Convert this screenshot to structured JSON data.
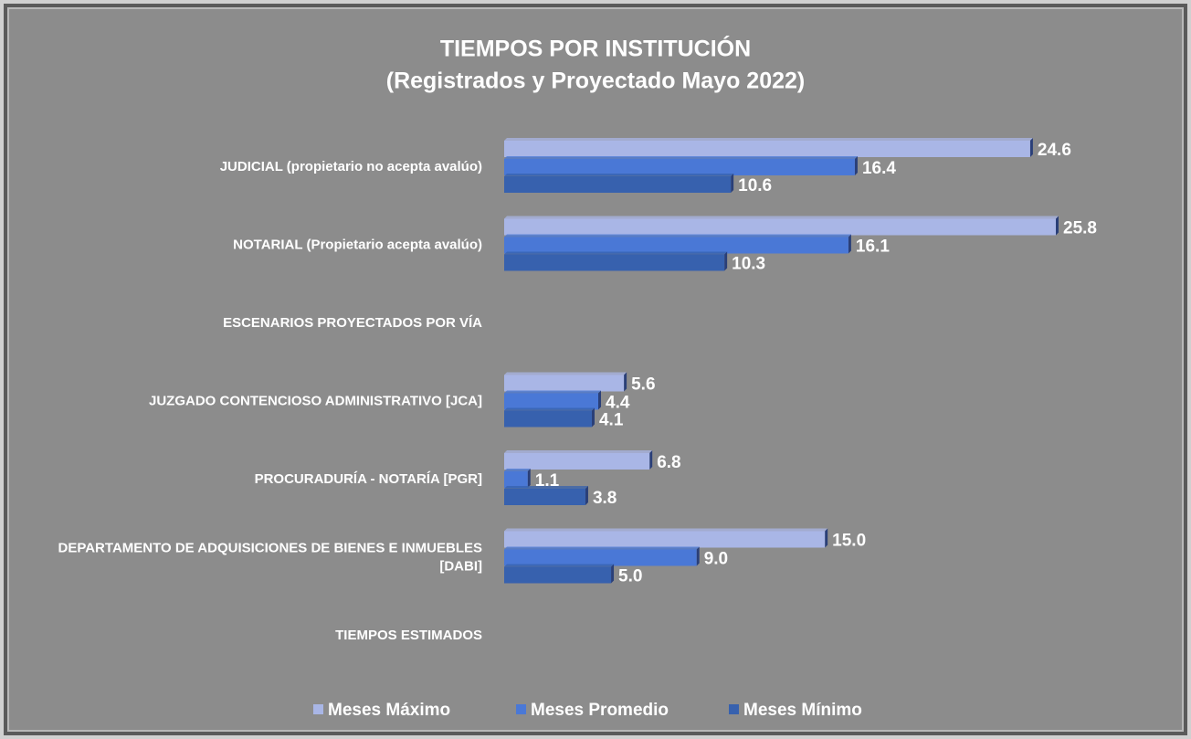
{
  "chart_data": {
    "type": "bar",
    "orientation": "horizontal",
    "title": "TIEMPOS POR INSTITUCIÓN",
    "subtitle": "(Registrados y Proyectado Mayo 2022)",
    "categories": [
      "JUDICIAL (propietario no acepta avalúo)",
      "NOTARIAL (Propietario acepta avalúo)",
      "ESCENARIOS PROYECTADOS POR VÍA",
      "JUZGADO CONTENCIOSO ADMINISTRATIVO [JCA]",
      "PROCURADURÍA - NOTARÍA [PGR]",
      "DEPARTAMENTO DE ADQUISICIONES DE BIENES E INMUEBLES [DABI]",
      "TIEMPOS ESTIMADOS"
    ],
    "series": [
      {
        "name": "Meses Máximo",
        "color": "#a9b6e6",
        "values": [
          24.6,
          25.8,
          null,
          5.6,
          6.8,
          15,
          null
        ],
        "value_labels": [
          "24.6",
          "25.8",
          null,
          "5.6",
          "6.8",
          "15.0",
          null
        ]
      },
      {
        "name": "Meses Promedio",
        "color": "#4a78d6",
        "values": [
          16.4,
          16.1,
          null,
          4.4,
          1.1,
          9,
          null
        ],
        "value_labels": [
          "16.4",
          "16.1",
          null,
          "4.4",
          "1.1",
          "9.0",
          null
        ]
      },
      {
        "name": "Meses Mínimo",
        "color": "#3761ae",
        "values": [
          10.6,
          10.3,
          null,
          4.1,
          3.8,
          5,
          null
        ],
        "value_labels": [
          "10.6",
          "10.3",
          null,
          "4.1",
          "3.8",
          "5.0",
          null
        ]
      }
    ],
    "legend": "bottom"
  }
}
